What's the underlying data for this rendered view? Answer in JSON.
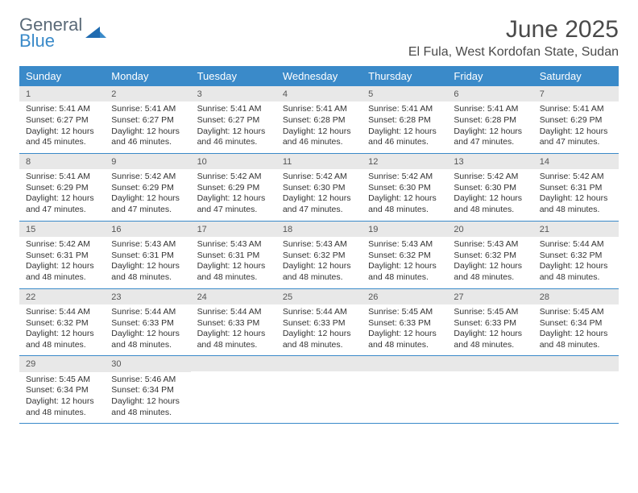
{
  "logo": {
    "word1": "General",
    "word2": "Blue"
  },
  "title": "June 2025",
  "location": "El Fula, West Kordofan State, Sudan",
  "colors": {
    "header_bg": "#3a8ac9",
    "header_text": "#ffffff",
    "daynum_bg": "#e8e8e8",
    "border": "#3a8ac9",
    "text": "#333333",
    "logo_gray": "#5a6a78",
    "logo_blue": "#3a8ac9"
  },
  "day_names": [
    "Sunday",
    "Monday",
    "Tuesday",
    "Wednesday",
    "Thursday",
    "Friday",
    "Saturday"
  ],
  "weeks": [
    [
      {
        "n": "1",
        "sr": "Sunrise: 5:41 AM",
        "ss": "Sunset: 6:27 PM",
        "dl": "Daylight: 12 hours and 45 minutes."
      },
      {
        "n": "2",
        "sr": "Sunrise: 5:41 AM",
        "ss": "Sunset: 6:27 PM",
        "dl": "Daylight: 12 hours and 46 minutes."
      },
      {
        "n": "3",
        "sr": "Sunrise: 5:41 AM",
        "ss": "Sunset: 6:27 PM",
        "dl": "Daylight: 12 hours and 46 minutes."
      },
      {
        "n": "4",
        "sr": "Sunrise: 5:41 AM",
        "ss": "Sunset: 6:28 PM",
        "dl": "Daylight: 12 hours and 46 minutes."
      },
      {
        "n": "5",
        "sr": "Sunrise: 5:41 AM",
        "ss": "Sunset: 6:28 PM",
        "dl": "Daylight: 12 hours and 46 minutes."
      },
      {
        "n": "6",
        "sr": "Sunrise: 5:41 AM",
        "ss": "Sunset: 6:28 PM",
        "dl": "Daylight: 12 hours and 47 minutes."
      },
      {
        "n": "7",
        "sr": "Sunrise: 5:41 AM",
        "ss": "Sunset: 6:29 PM",
        "dl": "Daylight: 12 hours and 47 minutes."
      }
    ],
    [
      {
        "n": "8",
        "sr": "Sunrise: 5:41 AM",
        "ss": "Sunset: 6:29 PM",
        "dl": "Daylight: 12 hours and 47 minutes."
      },
      {
        "n": "9",
        "sr": "Sunrise: 5:42 AM",
        "ss": "Sunset: 6:29 PM",
        "dl": "Daylight: 12 hours and 47 minutes."
      },
      {
        "n": "10",
        "sr": "Sunrise: 5:42 AM",
        "ss": "Sunset: 6:29 PM",
        "dl": "Daylight: 12 hours and 47 minutes."
      },
      {
        "n": "11",
        "sr": "Sunrise: 5:42 AM",
        "ss": "Sunset: 6:30 PM",
        "dl": "Daylight: 12 hours and 47 minutes."
      },
      {
        "n": "12",
        "sr": "Sunrise: 5:42 AM",
        "ss": "Sunset: 6:30 PM",
        "dl": "Daylight: 12 hours and 48 minutes."
      },
      {
        "n": "13",
        "sr": "Sunrise: 5:42 AM",
        "ss": "Sunset: 6:30 PM",
        "dl": "Daylight: 12 hours and 48 minutes."
      },
      {
        "n": "14",
        "sr": "Sunrise: 5:42 AM",
        "ss": "Sunset: 6:31 PM",
        "dl": "Daylight: 12 hours and 48 minutes."
      }
    ],
    [
      {
        "n": "15",
        "sr": "Sunrise: 5:42 AM",
        "ss": "Sunset: 6:31 PM",
        "dl": "Daylight: 12 hours and 48 minutes."
      },
      {
        "n": "16",
        "sr": "Sunrise: 5:43 AM",
        "ss": "Sunset: 6:31 PM",
        "dl": "Daylight: 12 hours and 48 minutes."
      },
      {
        "n": "17",
        "sr": "Sunrise: 5:43 AM",
        "ss": "Sunset: 6:31 PM",
        "dl": "Daylight: 12 hours and 48 minutes."
      },
      {
        "n": "18",
        "sr": "Sunrise: 5:43 AM",
        "ss": "Sunset: 6:32 PM",
        "dl": "Daylight: 12 hours and 48 minutes."
      },
      {
        "n": "19",
        "sr": "Sunrise: 5:43 AM",
        "ss": "Sunset: 6:32 PM",
        "dl": "Daylight: 12 hours and 48 minutes."
      },
      {
        "n": "20",
        "sr": "Sunrise: 5:43 AM",
        "ss": "Sunset: 6:32 PM",
        "dl": "Daylight: 12 hours and 48 minutes."
      },
      {
        "n": "21",
        "sr": "Sunrise: 5:44 AM",
        "ss": "Sunset: 6:32 PM",
        "dl": "Daylight: 12 hours and 48 minutes."
      }
    ],
    [
      {
        "n": "22",
        "sr": "Sunrise: 5:44 AM",
        "ss": "Sunset: 6:32 PM",
        "dl": "Daylight: 12 hours and 48 minutes."
      },
      {
        "n": "23",
        "sr": "Sunrise: 5:44 AM",
        "ss": "Sunset: 6:33 PM",
        "dl": "Daylight: 12 hours and 48 minutes."
      },
      {
        "n": "24",
        "sr": "Sunrise: 5:44 AM",
        "ss": "Sunset: 6:33 PM",
        "dl": "Daylight: 12 hours and 48 minutes."
      },
      {
        "n": "25",
        "sr": "Sunrise: 5:44 AM",
        "ss": "Sunset: 6:33 PM",
        "dl": "Daylight: 12 hours and 48 minutes."
      },
      {
        "n": "26",
        "sr": "Sunrise: 5:45 AM",
        "ss": "Sunset: 6:33 PM",
        "dl": "Daylight: 12 hours and 48 minutes."
      },
      {
        "n": "27",
        "sr": "Sunrise: 5:45 AM",
        "ss": "Sunset: 6:33 PM",
        "dl": "Daylight: 12 hours and 48 minutes."
      },
      {
        "n": "28",
        "sr": "Sunrise: 5:45 AM",
        "ss": "Sunset: 6:34 PM",
        "dl": "Daylight: 12 hours and 48 minutes."
      }
    ],
    [
      {
        "n": "29",
        "sr": "Sunrise: 5:45 AM",
        "ss": "Sunset: 6:34 PM",
        "dl": "Daylight: 12 hours and 48 minutes."
      },
      {
        "n": "30",
        "sr": "Sunrise: 5:46 AM",
        "ss": "Sunset: 6:34 PM",
        "dl": "Daylight: 12 hours and 48 minutes."
      },
      null,
      null,
      null,
      null,
      null
    ]
  ]
}
